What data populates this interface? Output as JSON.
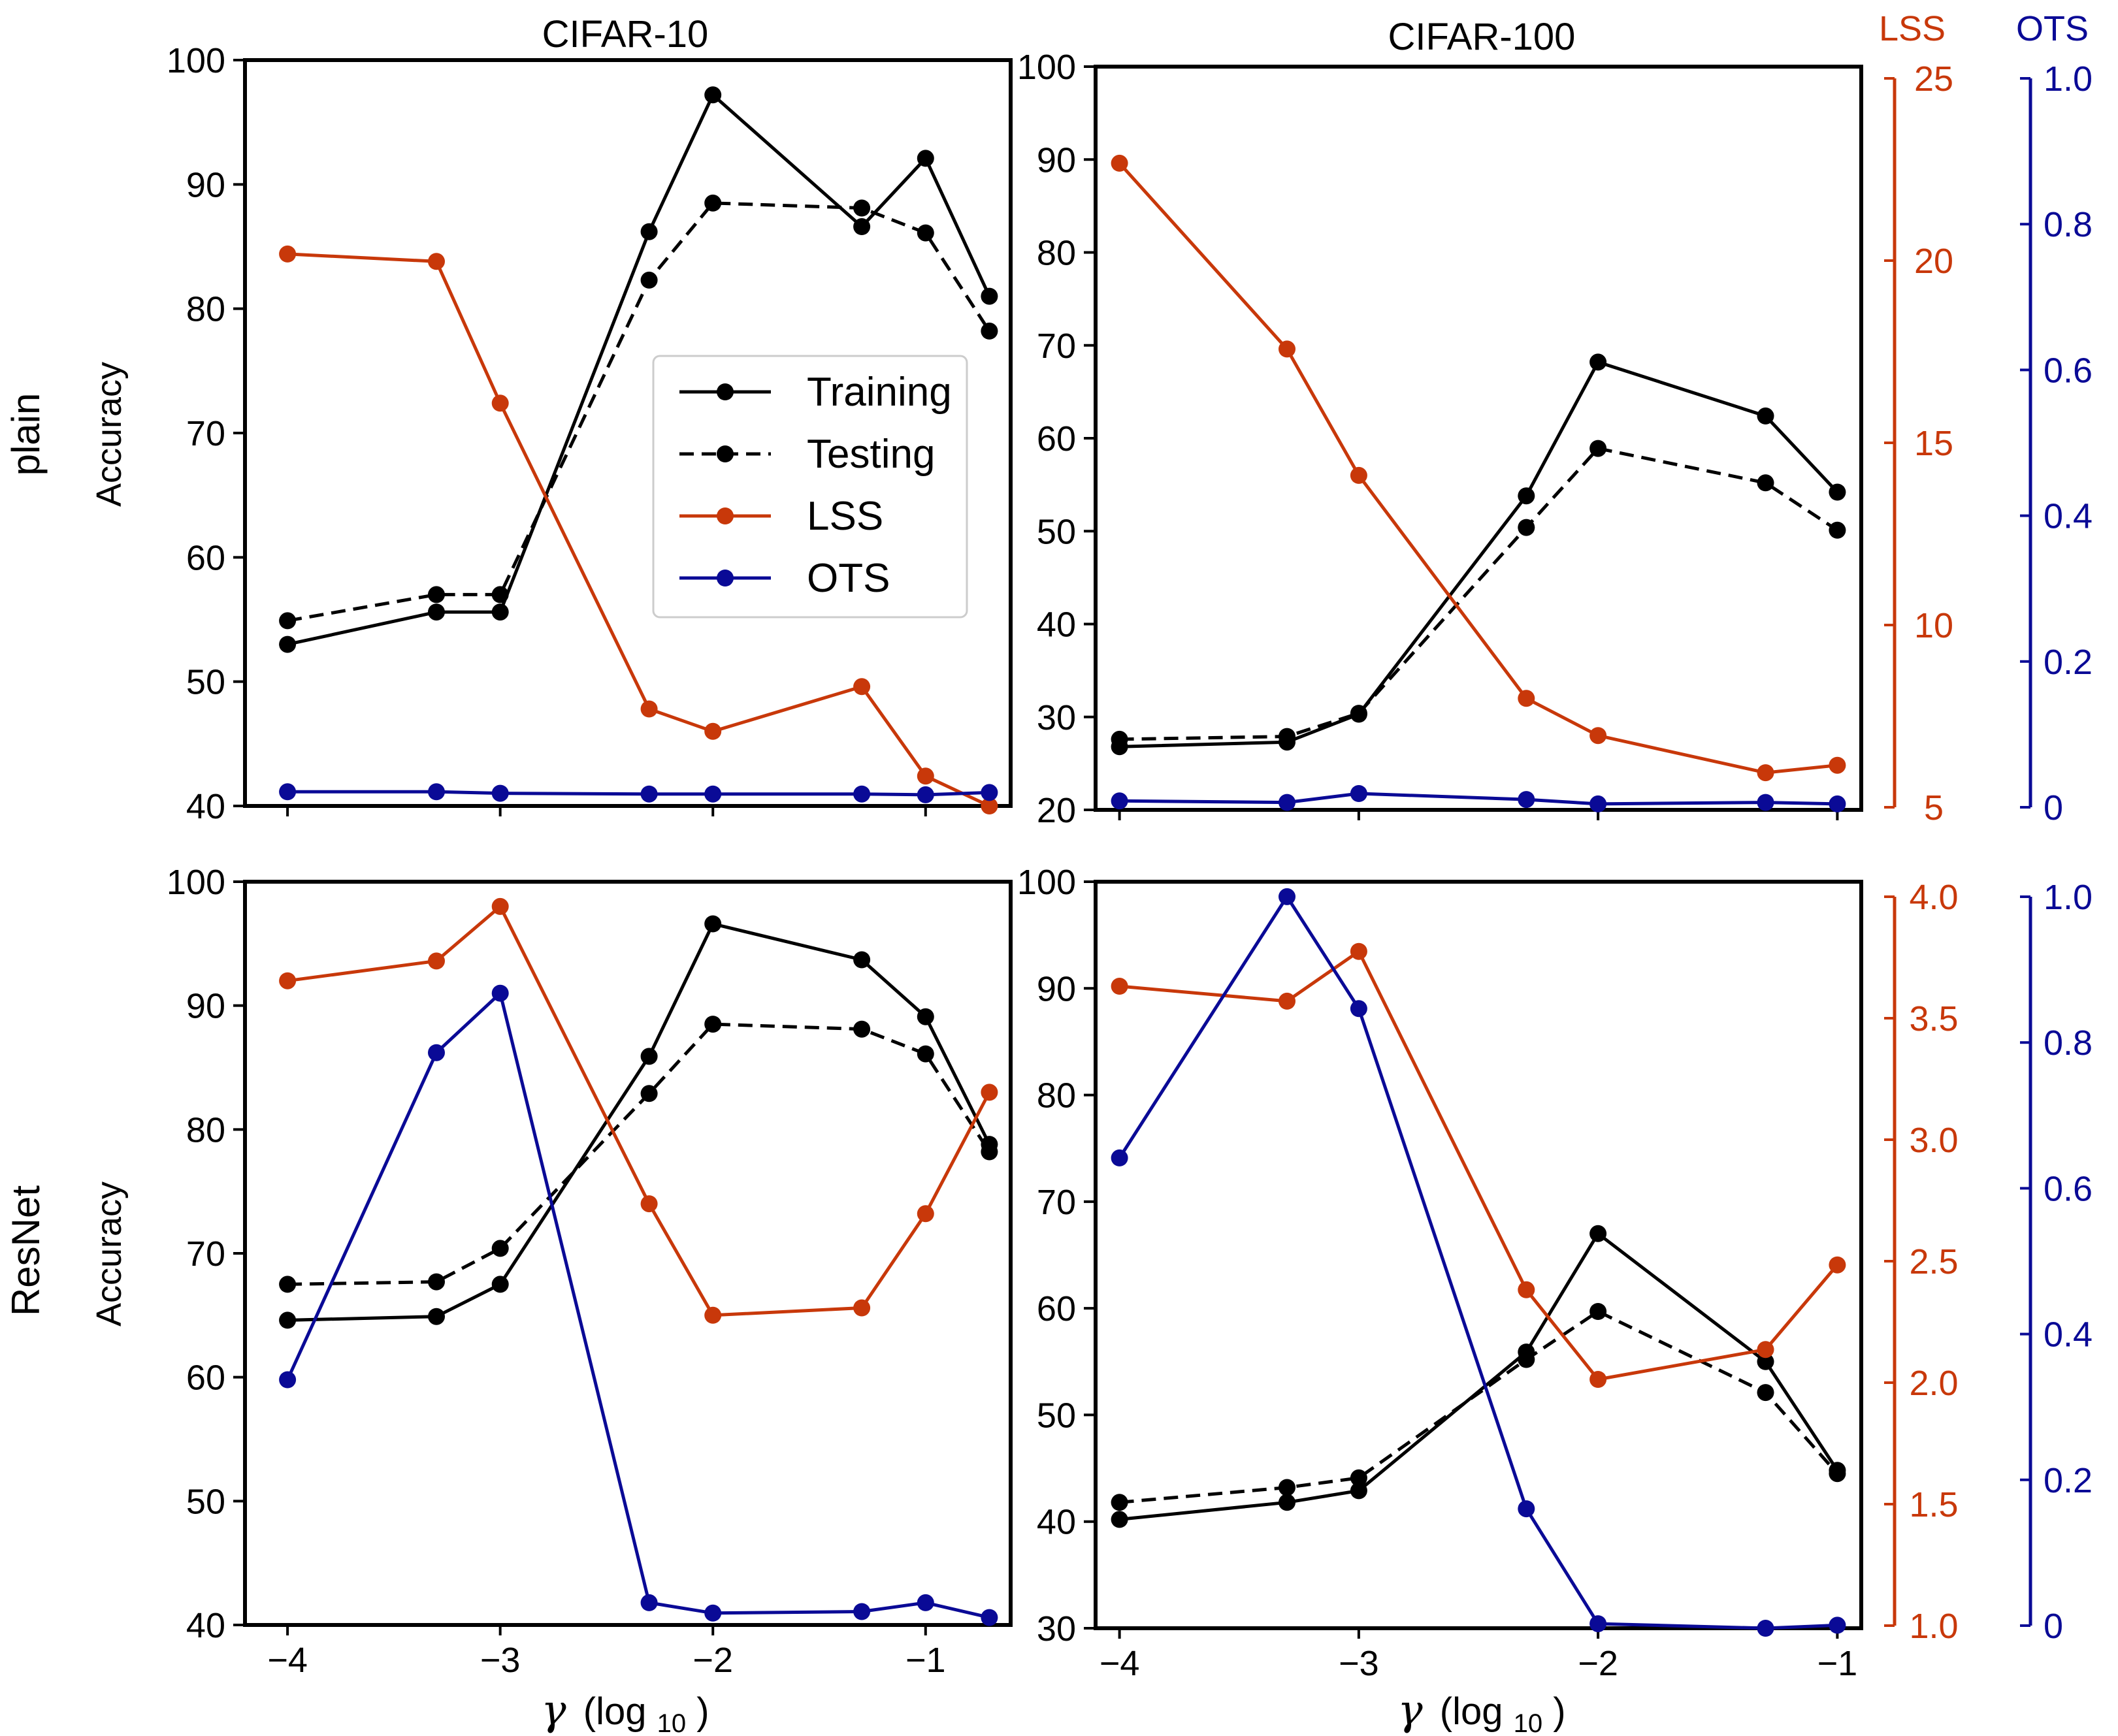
{
  "figure": {
    "column_titles": [
      "CIFAR-10",
      "CIFAR-100"
    ],
    "row_labels": [
      "plain",
      "ResNet"
    ],
    "right_axis_titles": {
      "lss": "LSS",
      "ots": "OTS"
    },
    "x_label_symbol": "γ",
    "x_label_log": "(log",
    "x_label_sub": "10",
    "x_label_close": ")"
  },
  "colors": {
    "training": "#000000",
    "testing": "#000000",
    "lss": "#c8380a",
    "ots": "#0a0a96"
  },
  "legend": {
    "entries": [
      {
        "key": "training",
        "label": "Training",
        "dash": false
      },
      {
        "key": "testing",
        "label": "Testing",
        "dash": true
      },
      {
        "key": "lss",
        "label": "LSS",
        "dash": false
      },
      {
        "key": "ots",
        "label": "OTS",
        "dash": false
      }
    ]
  },
  "chart_data": [
    {
      "panel": "plain-cifar10",
      "type": "line",
      "ylabel": "Accuracy",
      "xlim": [
        -4.2,
        -0.6
      ],
      "xticks": [
        -4,
        -3,
        -2,
        -1
      ],
      "xtick_labels": [
        "−4",
        "−3",
        "−2",
        "−1"
      ],
      "ylim": [
        40,
        100
      ],
      "yticks": [
        40,
        50,
        60,
        70,
        80,
        90,
        100
      ],
      "lss_lim": [
        5,
        25
      ],
      "ots_lim": [
        0,
        1
      ],
      "x": [
        -4,
        -3.3,
        -3,
        -2.3,
        -2,
        -1.3,
        -1,
        -0.7
      ],
      "series": [
        {
          "name": "Training",
          "key": "training",
          "axis": "acc",
          "values": [
            53,
            55.6,
            55.6,
            86.2,
            97.2,
            86.6,
            92.1,
            81
          ]
        },
        {
          "name": "Testing",
          "key": "testing",
          "axis": "acc",
          "values": [
            54.9,
            57,
            57,
            82.3,
            88.5,
            88.1,
            86.1,
            78.2
          ]
        },
        {
          "name": "LSS",
          "key": "lss",
          "axis": "lss",
          "values": [
            19.8,
            19.6,
            15.8,
            7.6,
            7.0,
            8.2,
            5.8,
            5.0
          ]
        },
        {
          "name": "OTS",
          "key": "ots",
          "axis": "ots",
          "values": [
            0.019,
            0.019,
            0.017,
            0.016,
            0.016,
            0.016,
            0.015,
            0.018
          ]
        }
      ]
    },
    {
      "panel": "plain-cifar100",
      "type": "line",
      "ylabel": "",
      "xlim": [
        -4.1,
        -0.9
      ],
      "xticks": [
        -4,
        -3,
        -2,
        -1
      ],
      "xtick_labels": [
        "−4",
        "−3",
        "−2",
        "−1"
      ],
      "ylim": [
        20,
        100
      ],
      "yticks": [
        20,
        30,
        40,
        50,
        60,
        70,
        80,
        90,
        100
      ],
      "lss_lim": [
        5,
        25
      ],
      "ots_lim": [
        0,
        1
      ],
      "lss_ticks": [
        5,
        10,
        15,
        20,
        25
      ],
      "lss_tick_labels": [
        "5",
        "10",
        "15",
        "20",
        "25"
      ],
      "ots_ticks": [
        0,
        0.2,
        0.4,
        0.6,
        0.8,
        1.0
      ],
      "ots_tick_labels": [
        "0",
        "0.2",
        "0.4",
        "0.6",
        "0.8",
        "1.0"
      ],
      "x": [
        -4,
        -3.3,
        -3,
        -2.3,
        -2,
        -1.3,
        -1
      ],
      "series": [
        {
          "name": "Training",
          "key": "training",
          "axis": "acc",
          "values": [
            26.8,
            27.3,
            30.3,
            53.8,
            68.2,
            62.4,
            54.2
          ]
        },
        {
          "name": "Testing",
          "key": "testing",
          "axis": "acc",
          "values": [
            27.6,
            27.9,
            30.4,
            50.4,
            58.9,
            55.2,
            50.1
          ]
        },
        {
          "name": "LSS",
          "key": "lss",
          "axis": "lss",
          "values": [
            22.4,
            17.4,
            14.0,
            8.0,
            7.0,
            6.0,
            6.2
          ]
        },
        {
          "name": "OTS",
          "key": "ots",
          "axis": "ots",
          "values": [
            0.012,
            0.01,
            0.022,
            0.014,
            0.008,
            0.01,
            0.008
          ]
        }
      ]
    },
    {
      "panel": "resnet-cifar10",
      "type": "line",
      "ylabel": "Accuracy",
      "xlim": [
        -4.2,
        -0.6
      ],
      "xticks": [
        -4,
        -3,
        -2,
        -1
      ],
      "xtick_labels": [
        "−4",
        "−3",
        "−2",
        "−1"
      ],
      "ylim": [
        40,
        100
      ],
      "yticks": [
        40,
        50,
        60,
        70,
        80,
        90,
        100
      ],
      "lss_lim": [
        1.0,
        4.0
      ],
      "ots_lim": [
        0,
        1
      ],
      "x": [
        -4,
        -3.3,
        -3,
        -2.3,
        -2,
        -1.3,
        -1,
        -0.7
      ],
      "series": [
        {
          "name": "Training",
          "key": "training",
          "axis": "acc",
          "values": [
            64.6,
            64.9,
            67.5,
            85.9,
            96.6,
            93.7,
            89.1,
            78.8
          ]
        },
        {
          "name": "Testing",
          "key": "testing",
          "axis": "acc",
          "values": [
            67.5,
            67.7,
            70.4,
            82.9,
            88.5,
            88.1,
            86.1,
            78.2
          ]
        },
        {
          "name": "LSS",
          "key": "lss",
          "axis": "lss",
          "values": [
            3.6,
            3.68,
            3.9,
            2.7,
            2.25,
            2.28,
            2.66,
            3.15
          ]
        },
        {
          "name": "OTS",
          "key": "ots",
          "axis": "ots",
          "values": [
            0.33,
            0.77,
            0.85,
            0.03,
            0.016,
            0.018,
            0.03,
            0.01
          ]
        }
      ]
    },
    {
      "panel": "resnet-cifar100",
      "type": "line",
      "ylabel": "",
      "xlim": [
        -4.1,
        -0.9
      ],
      "xticks": [
        -4,
        -3,
        -2,
        -1
      ],
      "xtick_labels": [
        "−4",
        "−3",
        "−2",
        "−1"
      ],
      "ylim": [
        30,
        100
      ],
      "yticks": [
        30,
        40,
        50,
        60,
        70,
        80,
        90,
        100
      ],
      "lss_lim": [
        1.0,
        4.0
      ],
      "ots_lim": [
        0,
        1
      ],
      "lss_ticks": [
        1.0,
        1.5,
        2.0,
        2.5,
        3.0,
        3.5,
        4.0
      ],
      "lss_tick_labels": [
        "1.0",
        "1.5",
        "2.0",
        "2.5",
        "3.0",
        "3.5",
        "4.0"
      ],
      "ots_ticks": [
        0,
        0.2,
        0.4,
        0.6,
        0.8,
        1.0
      ],
      "ots_tick_labels": [
        "0",
        "0.2",
        "0.4",
        "0.6",
        "0.8",
        "1.0"
      ],
      "x": [
        -4,
        -3.3,
        -3,
        -2.3,
        -2,
        -1.3,
        -1
      ],
      "series": [
        {
          "name": "Training",
          "key": "training",
          "axis": "acc",
          "values": [
            40.2,
            41.8,
            42.9,
            55.9,
            67.0,
            55.0,
            44.8
          ]
        },
        {
          "name": "Testing",
          "key": "testing",
          "axis": "acc",
          "values": [
            41.8,
            43.2,
            44.1,
            55.2,
            59.7,
            52.1,
            44.5
          ]
        },
        {
          "name": "LSS",
          "key": "lss",
          "axis": "lss",
          "values": [
            3.58,
            3.52,
            3.72,
            2.36,
            2.0,
            2.12,
            2.46
          ]
        },
        {
          "name": "OTS",
          "key": "ots",
          "axis": "ots",
          "values": [
            0.63,
            0.98,
            0.83,
            0.16,
            0.006,
            0.0,
            0.004
          ]
        }
      ]
    }
  ]
}
